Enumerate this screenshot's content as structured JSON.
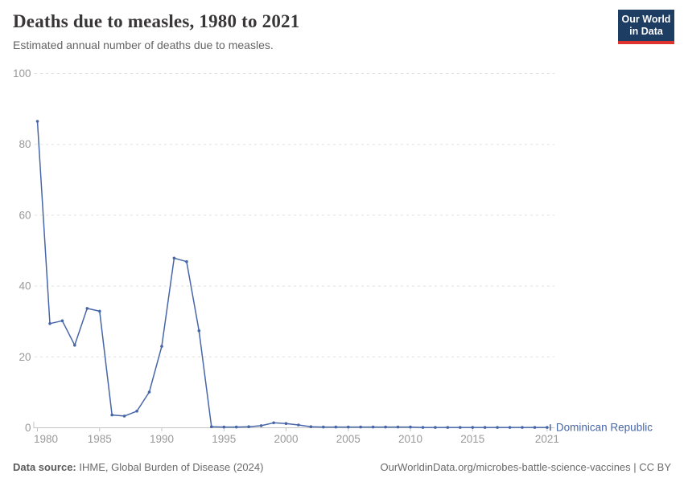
{
  "header": {
    "title": "Deaths due to measles, 1980 to 2021",
    "subtitle": "Estimated annual number of deaths due to measles."
  },
  "logo": {
    "line1": "Our World",
    "line2": "in Data",
    "bg_color": "#1d3d63",
    "bar_color": "#e0332e"
  },
  "chart_data": {
    "type": "line",
    "title": "Deaths due to measles, 1980 to 2021",
    "xlabel": "",
    "ylabel": "",
    "xlim": [
      1980,
      2021
    ],
    "ylim": [
      0,
      100
    ],
    "grid": "dashed-horizontal",
    "legend_position": "end-of-line-label",
    "x": [
      1980,
      1981,
      1982,
      1983,
      1984,
      1985,
      1986,
      1987,
      1988,
      1989,
      1990,
      1991,
      1992,
      1993,
      1994,
      1995,
      1996,
      1997,
      1998,
      1999,
      2000,
      2001,
      2002,
      2003,
      2004,
      2005,
      2006,
      2007,
      2008,
      2009,
      2010,
      2011,
      2012,
      2013,
      2014,
      2015,
      2016,
      2017,
      2018,
      2019,
      2020,
      2021
    ],
    "series": [
      {
        "name": "Dominican Republic",
        "color": "#4766a8",
        "values": [
          86.5,
          29.4,
          30.2,
          23.3,
          33.7,
          32.9,
          3.6,
          3.3,
          4.7,
          10.1,
          23,
          47.9,
          46.9,
          27.4,
          0.3,
          0.2,
          0.2,
          0.3,
          0.6,
          1.4,
          1.2,
          0.8,
          0.3,
          0.2,
          0.2,
          0.2,
          0.2,
          0.2,
          0.2,
          0.2,
          0.2,
          0.1,
          0.1,
          0.1,
          0.1,
          0.1,
          0.1,
          0.1,
          0.1,
          0.1,
          0.1,
          0.1
        ]
      }
    ],
    "xticks": [
      1980,
      1985,
      1990,
      1995,
      2000,
      2005,
      2010,
      2015,
      2021
    ],
    "yticks": [
      0,
      20,
      40,
      60,
      80,
      100
    ],
    "tick_color": "#999999",
    "grid_color": "#e0e0e0",
    "axis_color": "#c4c4c4"
  },
  "footer": {
    "source_label": "Data source:",
    "source_text": " IHME, Global Burden of Disease (2024)",
    "credit": "OurWorldinData.org/microbes-battle-science-vaccines | CC BY"
  }
}
